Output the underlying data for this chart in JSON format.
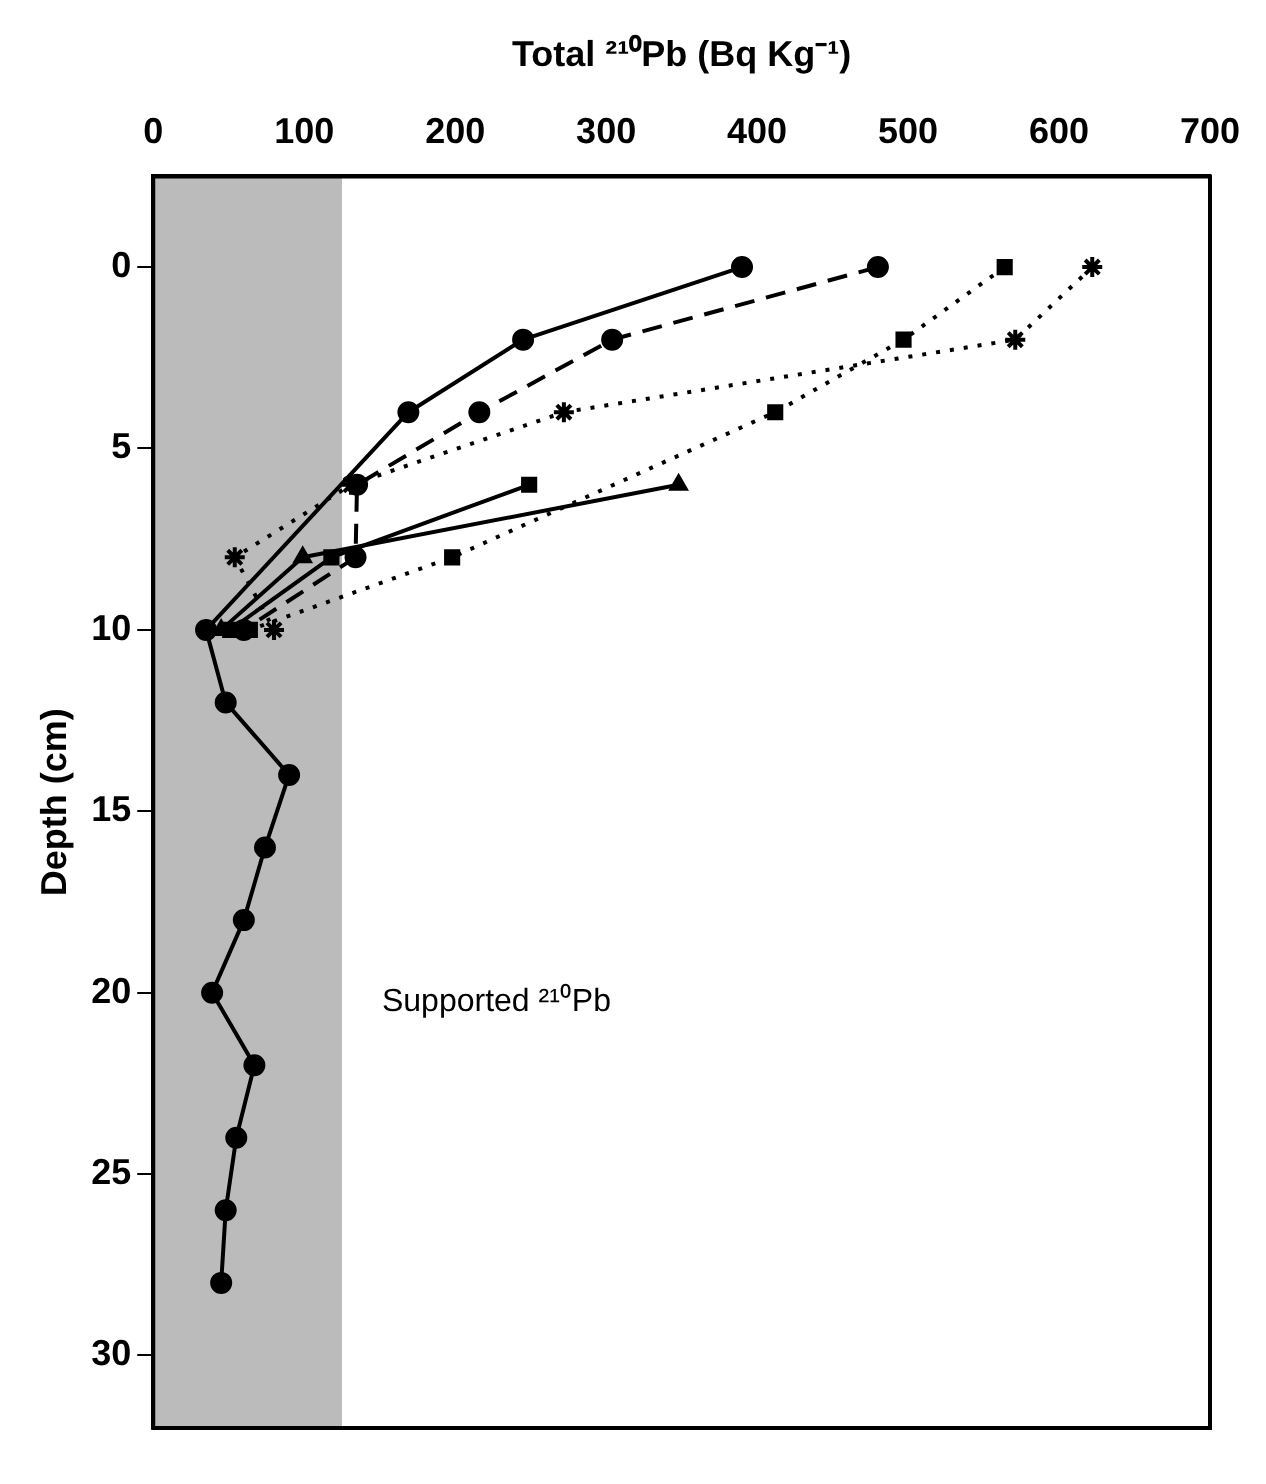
{
  "chart_data": {
    "type": "line",
    "xlabel": "Total ²¹⁰Pb (Bq Kg⁻¹)",
    "ylabel": "Depth (cm)",
    "xlim": [
      0,
      700
    ],
    "xticks": [
      0,
      100,
      200,
      300,
      400,
      500,
      600,
      700
    ],
    "ylim": [
      32,
      -2.5
    ],
    "yticks": [
      0,
      5,
      10,
      15,
      20,
      25,
      30
    ],
    "grid": false,
    "legend": false,
    "bands": [
      {
        "axis": "x",
        "from": 0,
        "to": 125,
        "label": "Supported ²¹⁰Pb",
        "color": "#bbbbbb"
      }
    ],
    "series": [
      {
        "color": "#000000",
        "marker": "circle",
        "line_style": "solid",
        "x": [
          390,
          245,
          169,
          35,
          48,
          90,
          74,
          60,
          39,
          67,
          55,
          48,
          45
        ],
        "values": [
          0,
          2,
          4,
          10,
          12,
          14,
          16,
          18,
          20,
          22,
          24,
          26,
          28
        ]
      },
      {
        "color": "#000000",
        "marker": "circle",
        "line_style": "dashed",
        "x": [
          480,
          304,
          216,
          135,
          134,
          60
        ],
        "values": [
          0,
          2,
          4,
          6,
          8,
          10
        ]
      },
      {
        "color": "#000000",
        "marker": "cross",
        "line_style": "dotted",
        "x": [
          622,
          571,
          272,
          131,
          54,
          80
        ],
        "values": [
          0,
          2,
          4,
          6,
          8,
          10
        ]
      },
      {
        "color": "#000000",
        "marker": "square",
        "line_style": "dotted",
        "x": [
          564,
          497,
          412,
          198,
          64
        ],
        "values": [
          0,
          2,
          4,
          8,
          10
        ]
      },
      {
        "color": "#000000",
        "marker": "square",
        "line_style": "solid",
        "x": [
          249,
          118,
          51
        ],
        "values": [
          6,
          8,
          10
        ]
      },
      {
        "color": "#000000",
        "marker": "triangle",
        "line_style": "solid",
        "x": [
          348,
          99,
          45
        ],
        "values": [
          6,
          8,
          10
        ]
      }
    ]
  }
}
